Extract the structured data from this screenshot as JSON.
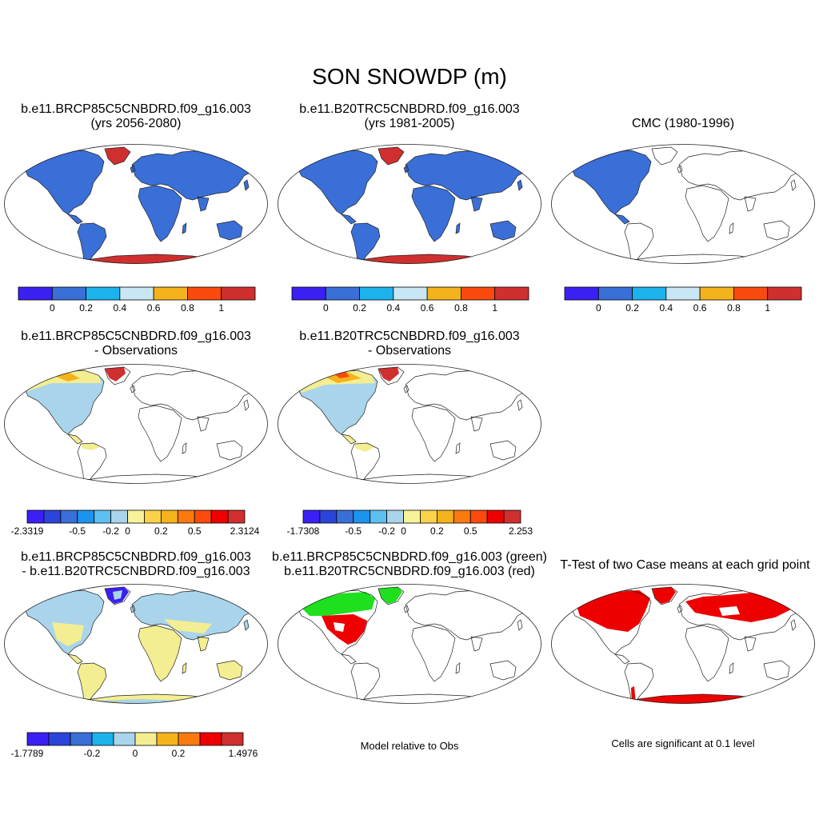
{
  "figure_title": "SON SNOWDP (m)",
  "colors": {
    "snow_blue": "#3A6FD8",
    "ice_red": "#D02F2F",
    "diff_lightblue": "#A9D4EC",
    "diff_yellow": "#F4EE92",
    "diff_orange": "#F4B31C",
    "sig_red": "#EE0000",
    "green": "#1EE01E",
    "outline": "#222222"
  },
  "panels": {
    "p1": {
      "line1": "b.e11.BRCP85C5CNBDRD.f09_g16.003",
      "line2": "(yrs 2056-2080)"
    },
    "p2": {
      "line1": "b.e11.B20TRC5CNBDRD.f09_g16.003",
      "line2": "(yrs 1981-2005)"
    },
    "p3": {
      "line1": "CMC (1980-1996)"
    },
    "p4": {
      "line1": "b.e11.BRCP85C5CNBDRD.f09_g16.003",
      "line2": "- Observations"
    },
    "p5": {
      "line1": "b.e11.B20TRC5CNBDRD.f09_g16.003",
      "line2": "- Observations"
    },
    "p6": {
      "line1": "b.e11.BRCP85C5CNBDRD.f09_g16.003",
      "line2": "- b.e11.B20TRC5CNBDRD.f09_g16.003"
    },
    "p7": {
      "line1": "b.e11.BRCP85C5CNBDRD.f09_g16.003 (green)",
      "line2": "b.e11.B20TRC5CNBDRD.f09_g16.003 (red)"
    },
    "p8": {
      "line1": "T-Test of two Case means at each grid point"
    }
  },
  "notes": {
    "model_vs_obs": "Model relative to Obs",
    "significance": "Cells are significant at 0.1 level"
  },
  "chart_data": [
    {
      "type": "colorbar",
      "id": "cb_abs",
      "colors": [
        "#3B20F4",
        "#3A6FD8",
        "#1CB3EC",
        "#C9E6F4",
        "#F4B31C",
        "#FB4A0E",
        "#D02F2F"
      ],
      "tick_labels": [
        "0",
        "0.2",
        "0.4",
        "0.6",
        "0.8",
        "1"
      ]
    },
    {
      "type": "colorbar",
      "id": "cb_bias1",
      "colors": [
        "#3B20F4",
        "#2B45DB",
        "#3A6FD8",
        "#1C93EC",
        "#5CC0F0",
        "#A9D4EC",
        "#F8F29A",
        "#FAD24A",
        "#F4B31C",
        "#FB7A10",
        "#FB4A0E",
        "#EE0000",
        "#D02F2F"
      ],
      "tick_labels": [
        "-2.3319",
        "-0.5",
        "-0.2",
        "0",
        "0.2",
        "0.5",
        "2.3124"
      ]
    },
    {
      "type": "colorbar",
      "id": "cb_bias2",
      "colors": [
        "#3B20F4",
        "#2B45DB",
        "#3A6FD8",
        "#1C93EC",
        "#5CC0F0",
        "#A9D4EC",
        "#F8F29A",
        "#FAD24A",
        "#F4B31C",
        "#FB7A10",
        "#FB4A0E",
        "#EE0000",
        "#D02F2F"
      ],
      "tick_labels": [
        "-1.7308",
        "-0.5",
        "-0.2",
        "0",
        "0.2",
        "0.5",
        "2.253"
      ]
    },
    {
      "type": "colorbar",
      "id": "cb_diff",
      "colors": [
        "#3B20F4",
        "#2B45DB",
        "#3A6FD8",
        "#1CB3EC",
        "#A9D4EC",
        "#F4EE92",
        "#F4B31C",
        "#FB7A10",
        "#EE0000",
        "#D02F2F"
      ],
      "tick_labels": [
        "-1.7789",
        "-0.2",
        "0",
        "0.2",
        "1.4976"
      ]
    }
  ]
}
